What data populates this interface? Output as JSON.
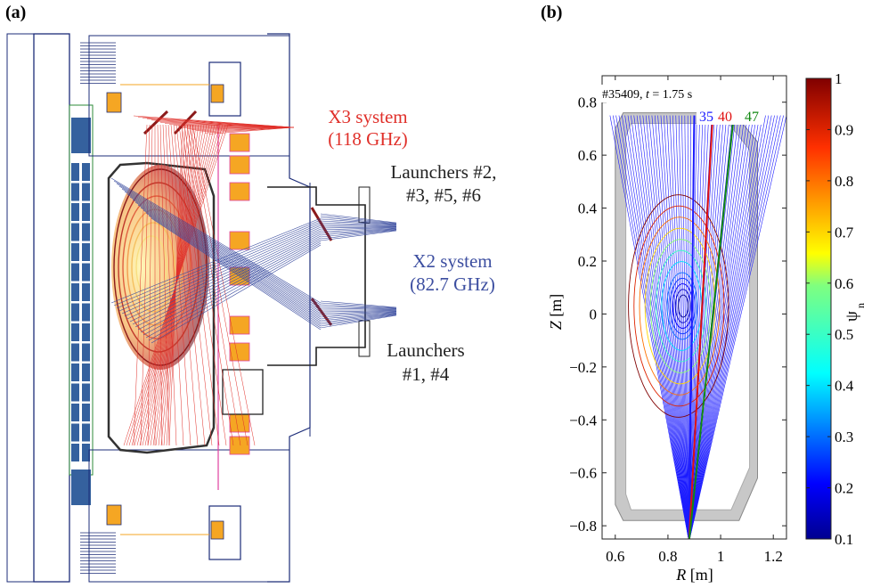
{
  "panel_a": {
    "label": "(a)",
    "x3_line1": "X3 system",
    "x3_line2": "(118 GHz)",
    "launchers_top_line1": "Launchers #2,",
    "launchers_top_line2": "#3, #5, #6",
    "x2_line1": "X2 system",
    "x2_line2": "(82.7 GHz)",
    "launchers_bottom_line1": "Launchers",
    "launchers_bottom_line2": "#1, #4",
    "colors": {
      "x3": "#e0302a",
      "x2": "#3c4ea0",
      "coil": "#f5a623",
      "vessel": "#1c2c78",
      "tile": "#35619e"
    }
  },
  "panel_b": {
    "label": "(b)",
    "shot_prefix": "#35409, ",
    "shot_t": "t",
    "shot_suffix": " = 1.75 s",
    "beam_labels": [
      {
        "text": "35",
        "color": "#1a1aff"
      },
      {
        "text": "40",
        "color": "#e01010"
      },
      {
        "text": "47",
        "color": "#118811"
      }
    ],
    "xlabel_var": "R",
    "xlabel_unit": " [m]",
    "ylabel_var": "Z",
    "ylabel_unit": " [m]",
    "colorbar_label": "ψ",
    "colorbar_sub": "n",
    "x_ticks": [
      "0.6",
      "0.8",
      "1",
      "1.2"
    ],
    "y_ticks": [
      "0.8",
      "0.6",
      "0.4",
      "0.2",
      "0",
      "−0.2",
      "−0.4",
      "−0.6",
      "−0.8"
    ],
    "cb_ticks": [
      "1",
      "0.9",
      "0.8",
      "0.7",
      "0.6",
      "0.5",
      "0.4",
      "0.3",
      "0.2",
      "0.1"
    ]
  },
  "chart_data": {
    "type": "line",
    "title": "#35409, t = 1.75 s",
    "xlabel": "R [m]",
    "ylabel": "Z [m]",
    "xlim": [
      0.55,
      1.25
    ],
    "ylim": [
      -0.85,
      0.9
    ],
    "colorbar": {
      "label": "ψn",
      "range": [
        0.1,
        1
      ]
    },
    "series": [
      {
        "name": "35",
        "x": [
          0.9,
          0.88
        ],
        "y": [
          0.75,
          -0.86
        ],
        "color": "#1a1aff"
      },
      {
        "name": "40",
        "x": [
          0.97,
          0.88
        ],
        "y": [
          0.75,
          -0.86
        ],
        "color": "#e01010"
      },
      {
        "name": "47",
        "x": [
          1.05,
          0.88
        ],
        "y": [
          0.75,
          -0.86
        ],
        "color": "#118811"
      }
    ],
    "beam_fan": {
      "origin": [
        0.88,
        -0.86
      ],
      "x_start": [
        0.58,
        1.25
      ],
      "y_top": 0.75,
      "count": 60
    },
    "flux_contours": {
      "center": [
        0.86,
        0.03
      ],
      "psi_levels": [
        0.1,
        0.15,
        0.2,
        0.25,
        0.3,
        0.4,
        0.5,
        0.6,
        0.7,
        0.8,
        0.9,
        1.0
      ]
    }
  }
}
